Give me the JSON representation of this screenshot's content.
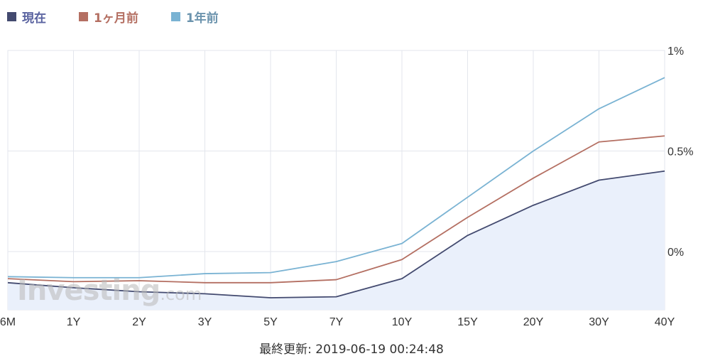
{
  "legend": [
    {
      "label": "現在",
      "color": "#434a6f",
      "text_color": "#5a63a0"
    },
    {
      "label": "1ヶ月前",
      "color": "#b46f62",
      "text_color": "#b46f62"
    },
    {
      "label": "1年前",
      "color": "#7ab3d3",
      "text_color": "#6b93ad"
    }
  ],
  "watermark": {
    "brand": "Investing",
    "suffix": ".com"
  },
  "footer": {
    "text": "最終更新: 2019-06-19 00:24:48"
  },
  "chart_data": {
    "type": "line",
    "categories": [
      "6M",
      "1Y",
      "2Y",
      "3Y",
      "5Y",
      "7Y",
      "10Y",
      "15Y",
      "20Y",
      "30Y",
      "40Y"
    ],
    "y_ticks": [
      {
        "value": 0,
        "label": "0%"
      },
      {
        "value": 0.5,
        "label": "0.5%"
      },
      {
        "value": 1,
        "label": "1%"
      }
    ],
    "ylim": [
      -0.29,
      1
    ],
    "grid": true,
    "y_axis_side": "right",
    "legend_position": "top-left",
    "series": [
      {
        "name": "現在",
        "color": "#434a6f",
        "filled": true,
        "fill": "#eaf0fb",
        "values": [
          -0.155,
          -0.18,
          -0.2,
          -0.21,
          -0.23,
          -0.225,
          -0.135,
          0.08,
          0.23,
          0.355,
          0.4
        ]
      },
      {
        "name": "1ヶ月前",
        "color": "#b46f62",
        "filled": false,
        "values": [
          -0.135,
          -0.15,
          -0.145,
          -0.155,
          -0.155,
          -0.14,
          -0.04,
          0.17,
          0.365,
          0.545,
          0.575
        ]
      },
      {
        "name": "1年前",
        "color": "#7ab3d3",
        "filled": false,
        "values": [
          -0.125,
          -0.13,
          -0.13,
          -0.11,
          -0.105,
          -0.05,
          0.04,
          0.27,
          0.5,
          0.71,
          0.865
        ]
      }
    ]
  }
}
